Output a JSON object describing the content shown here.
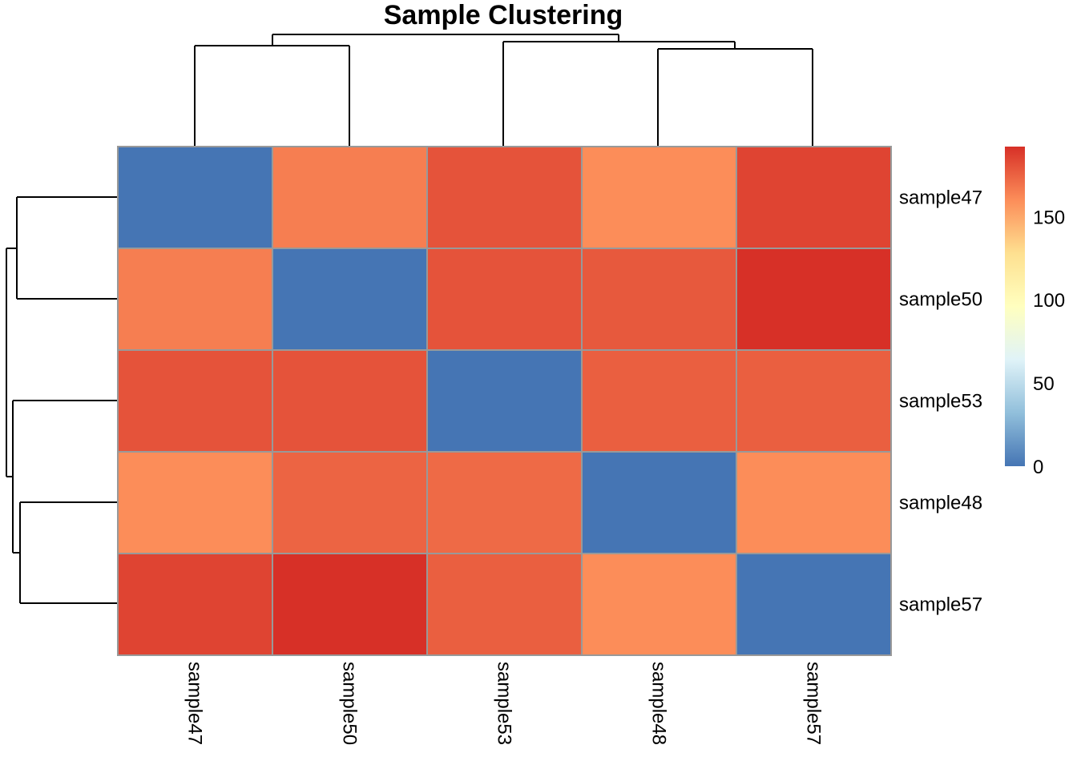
{
  "chart_data": {
    "type": "heatmap",
    "title": "Sample Clustering",
    "rows": [
      "sample47",
      "sample50",
      "sample53",
      "sample48",
      "sample57"
    ],
    "columns": [
      "sample47",
      "sample50",
      "sample53",
      "sample48",
      "sample57"
    ],
    "values": [
      [
        0,
        165,
        180,
        160,
        185
      ],
      [
        165,
        0,
        180,
        178,
        192
      ],
      [
        180,
        180,
        0,
        176,
        176
      ],
      [
        160,
        174,
        172,
        0,
        160
      ],
      [
        185,
        192,
        176,
        160,
        0
      ]
    ],
    "colorbar": {
      "min": 0,
      "max": 192,
      "ticks": [
        0,
        50,
        100,
        150
      ],
      "tick_labels": [
        "0",
        "50",
        "100",
        "150"
      ],
      "colors": [
        "#4575B4",
        "#91BFDB",
        "#E0F3F8",
        "#FFFFBF",
        "#FEE090",
        "#FC8D59",
        "#D73027"
      ]
    },
    "row_dendrogram": "left",
    "column_dendrogram": "top",
    "cell_border_color": "#999999",
    "dendrogram_color": "#000000"
  }
}
